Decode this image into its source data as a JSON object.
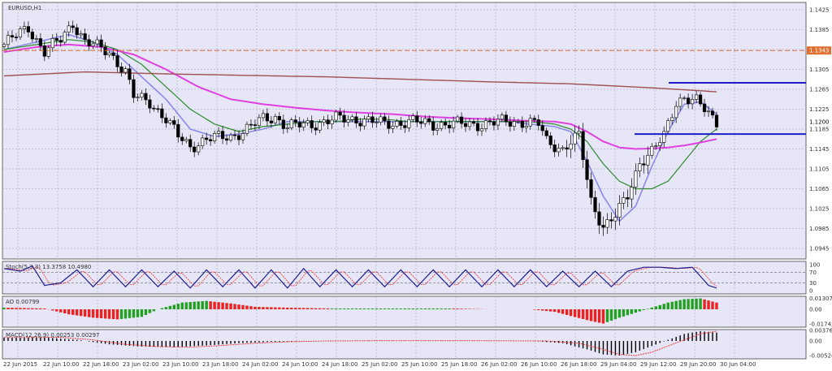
{
  "symbol_label": "EURUSD,H1",
  "colors": {
    "background": "#e6e6f7",
    "grid": "#9a9ab4",
    "fast_ma": "#8a8ae8",
    "mid_ma": "#2e8b2e",
    "slow_ma": "#e040e0",
    "long_ma": "#a05050",
    "level_line": "#e07030",
    "level_box": "#e07030",
    "hline": "#1e1ec8",
    "bull_candle": "#ffffff",
    "bear_candle": "#000000",
    "ao_up": "#21a021",
    "ao_down": "#ee2020",
    "macd_hist": "#000000",
    "macd_signal": "#ee3030",
    "stoch_main": "#1e1e90",
    "stoch_signal": "#ee3030"
  },
  "main_axis": {
    "tick_labels": [
      "1.1425",
      "1.1385",
      "1.1345",
      "1.1305",
      "1.1265",
      "1.1225",
      "1.1185",
      "1.1145",
      "1.1105",
      "1.1065",
      "1.1025",
      "1.0985",
      "1.0945"
    ],
    "current_price": "1.1200",
    "level_price": "1.1343"
  },
  "time_axis": {
    "tick_labels": [
      "22 Jun 2015",
      "22 Jun 10:00",
      "22 Jun 18:00",
      "23 Jun 02:00",
      "23 Jun 10:00",
      "23 Jun 18:00",
      "24 Jun 02:00",
      "24 Jun 10:00",
      "24 Jun 18:00",
      "25 Jun 02:00",
      "25 Jun 10:00",
      "25 Jun 18:00",
      "26 Jun 02:00",
      "26 Jun 10:00",
      "26 Jun 18:00",
      "29 Jun 04:00",
      "29 Jun 12:00",
      "29 Jun 20:00",
      "30 Jun 04:00"
    ]
  },
  "stoch": {
    "label": "Stoch(5,3,3) 13.3758 10.4980",
    "tick_labels": [
      "100",
      "70",
      "30",
      "0"
    ]
  },
  "ao": {
    "label": "AO 0.00799",
    "tick_labels": [
      "0.01307",
      "0.00",
      "-0.01742"
    ]
  },
  "macd": {
    "label": "MACD(12,26,9) 0.00253 0.00297",
    "tick_labels": [
      "0.00376",
      "0.00",
      "-0.00524"
    ]
  },
  "chart_data": {
    "type": "candlestick",
    "ylim": [
      1.0925,
      1.1445
    ],
    "level_line": 1.1343,
    "current_price": 1.12,
    "horizontal_lines": [
      1.1278,
      1.1175
    ],
    "candle_keypoints": [
      [
        0,
        1.1355
      ],
      [
        6,
        1.139
      ],
      [
        10,
        1.134
      ],
      [
        14,
        1.1365
      ],
      [
        17,
        1.14
      ],
      [
        20,
        1.136
      ],
      [
        26,
        1.134
      ],
      [
        30,
        1.13
      ],
      [
        32,
        1.125
      ],
      [
        36,
        1.124
      ],
      [
        40,
        1.1205
      ],
      [
        43,
        1.117
      ],
      [
        46,
        1.115
      ],
      [
        50,
        1.1165
      ],
      [
        56,
        1.117
      ],
      [
        60,
        1.1185
      ],
      [
        64,
        1.1205
      ],
      [
        67,
        1.121
      ],
      [
        70,
        1.119
      ],
      [
        76,
        1.1195
      ],
      [
        82,
        1.1205
      ],
      [
        88,
        1.1205
      ],
      [
        94,
        1.1195
      ],
      [
        100,
        1.12
      ],
      [
        106,
        1.1195
      ],
      [
        112,
        1.1195
      ],
      [
        118,
        1.1195
      ],
      [
        124,
        1.12
      ],
      [
        128,
        1.12
      ],
      [
        132,
        1.1195
      ],
      [
        134,
        1.116
      ],
      [
        138,
        1.1145
      ],
      [
        140,
        1.116
      ],
      [
        142,
        1.117
      ],
      [
        145,
        1.104
      ],
      [
        148,
        1.099
      ],
      [
        151,
        1.101
      ],
      [
        154,
        1.105
      ],
      [
        157,
        1.112
      ],
      [
        160,
        1.114
      ],
      [
        163,
        1.117
      ],
      [
        166,
        1.124
      ],
      [
        168,
        1.125
      ],
      [
        171,
        1.124
      ],
      [
        174,
        1.1215
      ],
      [
        176,
        1.12
      ]
    ],
    "indicators": [
      {
        "name": "fast_ma",
        "points": [
          [
            0,
            1.1345
          ],
          [
            8,
            1.136
          ],
          [
            16,
            1.1375
          ],
          [
            22,
            1.136
          ],
          [
            28,
            1.1335
          ],
          [
            34,
            1.129
          ],
          [
            40,
            1.1245
          ],
          [
            46,
            1.1185
          ],
          [
            52,
            1.117
          ],
          [
            58,
            1.1175
          ],
          [
            64,
            1.1185
          ],
          [
            70,
            1.12
          ],
          [
            76,
            1.12
          ],
          [
            82,
            1.12
          ],
          [
            88,
            1.12
          ],
          [
            94,
            1.12
          ],
          [
            100,
            1.12
          ],
          [
            106,
            1.12
          ],
          [
            112,
            1.12
          ],
          [
            118,
            1.12
          ],
          [
            124,
            1.12
          ],
          [
            130,
            1.1195
          ],
          [
            136,
            1.119
          ],
          [
            140,
            1.118
          ],
          [
            144,
            1.112
          ],
          [
            148,
            1.105
          ],
          [
            152,
            1.1
          ],
          [
            156,
            1.103
          ],
          [
            160,
            1.111
          ],
          [
            164,
            1.118
          ],
          [
            168,
            1.1235
          ],
          [
            172,
            1.124
          ],
          [
            176,
            1.1215
          ]
        ]
      },
      {
        "name": "mid_ma",
        "points": [
          [
            0,
            1.1345
          ],
          [
            8,
            1.1355
          ],
          [
            16,
            1.1365
          ],
          [
            22,
            1.136
          ],
          [
            28,
            1.1345
          ],
          [
            34,
            1.1315
          ],
          [
            40,
            1.127
          ],
          [
            46,
            1.1225
          ],
          [
            52,
            1.1195
          ],
          [
            58,
            1.118
          ],
          [
            64,
            1.119
          ],
          [
            70,
            1.1195
          ],
          [
            76,
            1.12
          ],
          [
            82,
            1.12
          ],
          [
            88,
            1.1205
          ],
          [
            94,
            1.1205
          ],
          [
            100,
            1.12
          ],
          [
            106,
            1.12
          ],
          [
            112,
            1.12
          ],
          [
            118,
            1.12
          ],
          [
            124,
            1.12
          ],
          [
            130,
            1.12
          ],
          [
            136,
            1.1195
          ],
          [
            140,
            1.1185
          ],
          [
            144,
            1.116
          ],
          [
            148,
            1.1115
          ],
          [
            152,
            1.108
          ],
          [
            156,
            1.1065
          ],
          [
            160,
            1.1065
          ],
          [
            164,
            1.108
          ],
          [
            168,
            1.112
          ],
          [
            172,
            1.116
          ],
          [
            176,
            1.1185
          ]
        ]
      },
      {
        "name": "slow_ma",
        "points": [
          [
            0,
            1.134
          ],
          [
            8,
            1.135
          ],
          [
            16,
            1.1355
          ],
          [
            24,
            1.135
          ],
          [
            32,
            1.1335
          ],
          [
            40,
            1.1305
          ],
          [
            48,
            1.127
          ],
          [
            56,
            1.1245
          ],
          [
            64,
            1.1235
          ],
          [
            72,
            1.1228
          ],
          [
            80,
            1.1222
          ],
          [
            88,
            1.1218
          ],
          [
            96,
            1.1215
          ],
          [
            104,
            1.121
          ],
          [
            112,
            1.1207
          ],
          [
            120,
            1.1205
          ],
          [
            128,
            1.1202
          ],
          [
            136,
            1.12
          ],
          [
            140,
            1.1195
          ],
          [
            144,
            1.118
          ],
          [
            148,
            1.116
          ],
          [
            152,
            1.1148
          ],
          [
            156,
            1.1145
          ],
          [
            160,
            1.1146
          ],
          [
            164,
            1.1148
          ],
          [
            168,
            1.1152
          ],
          [
            172,
            1.1158
          ],
          [
            176,
            1.1165
          ]
        ]
      },
      {
        "name": "long_ma",
        "points": [
          [
            0,
            1.1292
          ],
          [
            20,
            1.13
          ],
          [
            40,
            1.1296
          ],
          [
            60,
            1.1293
          ],
          [
            80,
            1.129
          ],
          [
            100,
            1.1285
          ],
          [
            120,
            1.128
          ],
          [
            140,
            1.1276
          ],
          [
            160,
            1.1268
          ],
          [
            176,
            1.126
          ]
        ]
      }
    ],
    "stoch_keypoints": [
      [
        0,
        85
      ],
      [
        4,
        75
      ],
      [
        7,
        95
      ],
      [
        10,
        20
      ],
      [
        14,
        30
      ],
      [
        18,
        80
      ],
      [
        22,
        15
      ],
      [
        26,
        80
      ],
      [
        30,
        15
      ],
      [
        34,
        80
      ],
      [
        38,
        15
      ],
      [
        42,
        75
      ],
      [
        46,
        10
      ],
      [
        50,
        80
      ],
      [
        54,
        15
      ],
      [
        58,
        80
      ],
      [
        62,
        10
      ],
      [
        66,
        80
      ],
      [
        70,
        10
      ],
      [
        74,
        85
      ],
      [
        78,
        15
      ],
      [
        82,
        80
      ],
      [
        86,
        15
      ],
      [
        90,
        80
      ],
      [
        94,
        15
      ],
      [
        98,
        80
      ],
      [
        102,
        15
      ],
      [
        106,
        80
      ],
      [
        110,
        15
      ],
      [
        114,
        80
      ],
      [
        118,
        15
      ],
      [
        122,
        80
      ],
      [
        126,
        15
      ],
      [
        130,
        80
      ],
      [
        134,
        15
      ],
      [
        138,
        75
      ],
      [
        142,
        15
      ],
      [
        146,
        75
      ],
      [
        150,
        15
      ],
      [
        154,
        75
      ],
      [
        158,
        90
      ],
      [
        162,
        90
      ],
      [
        166,
        85
      ],
      [
        170,
        90
      ],
      [
        174,
        20
      ],
      [
        176,
        10
      ]
    ],
    "ao_keypoints": [
      [
        0,
        0.002
      ],
      [
        10,
        0.001
      ],
      [
        16,
        -0.006
      ],
      [
        22,
        -0.01
      ],
      [
        28,
        -0.012
      ],
      [
        34,
        -0.009
      ],
      [
        38,
        0.0
      ],
      [
        44,
        0.008
      ],
      [
        50,
        0.01
      ],
      [
        56,
        0.007
      ],
      [
        62,
        0.003
      ],
      [
        70,
        0.002
      ],
      [
        80,
        0.001
      ],
      [
        90,
        0.001
      ],
      [
        100,
        0.001
      ],
      [
        110,
        0.001
      ],
      [
        120,
        0.0
      ],
      [
        130,
        0.0
      ],
      [
        136,
        -0.003
      ],
      [
        140,
        -0.008
      ],
      [
        145,
        -0.014
      ],
      [
        148,
        -0.017
      ],
      [
        152,
        -0.01
      ],
      [
        156,
        -0.004
      ],
      [
        160,
        0.002
      ],
      [
        164,
        0.008
      ],
      [
        168,
        0.012
      ],
      [
        172,
        0.013
      ],
      [
        176,
        0.008
      ]
    ],
    "macd_keypoints": [
      [
        0,
        0.0012
      ],
      [
        10,
        0.0013
      ],
      [
        18,
        0.0004
      ],
      [
        26,
        -0.0012
      ],
      [
        34,
        -0.002
      ],
      [
        42,
        -0.0022
      ],
      [
        50,
        -0.0016
      ],
      [
        58,
        -0.0008
      ],
      [
        66,
        -0.0003
      ],
      [
        76,
        0.0
      ],
      [
        90,
        0.0001
      ],
      [
        110,
        0.0001
      ],
      [
        130,
        0.0
      ],
      [
        138,
        -0.0008
      ],
      [
        144,
        -0.003
      ],
      [
        148,
        -0.0048
      ],
      [
        152,
        -0.0052
      ],
      [
        156,
        -0.004
      ],
      [
        160,
        -0.0018
      ],
      [
        164,
        0.0004
      ],
      [
        168,
        0.0025
      ],
      [
        172,
        0.0035
      ],
      [
        176,
        0.003
      ]
    ]
  }
}
